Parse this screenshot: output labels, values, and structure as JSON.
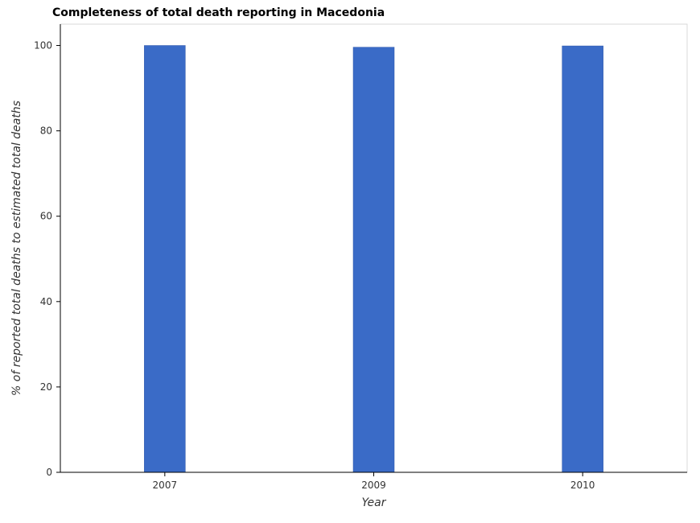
{
  "chart_data": {
    "type": "bar",
    "title": "Completeness of total death reporting in Macedonia",
    "xlabel": "Year",
    "ylabel": "% of reported total deaths to estimated total deaths",
    "categories": [
      "2007",
      "2009",
      "2010"
    ],
    "values": [
      100,
      99.6,
      99.9
    ],
    "ylim": [
      0,
      105
    ],
    "yticks": [
      0,
      20,
      40,
      60,
      80,
      100
    ],
    "grid": false,
    "colors": {
      "bar": "#3a6bc7",
      "bar_border": "#2c55a8",
      "frame": "#d9d9d9"
    }
  }
}
